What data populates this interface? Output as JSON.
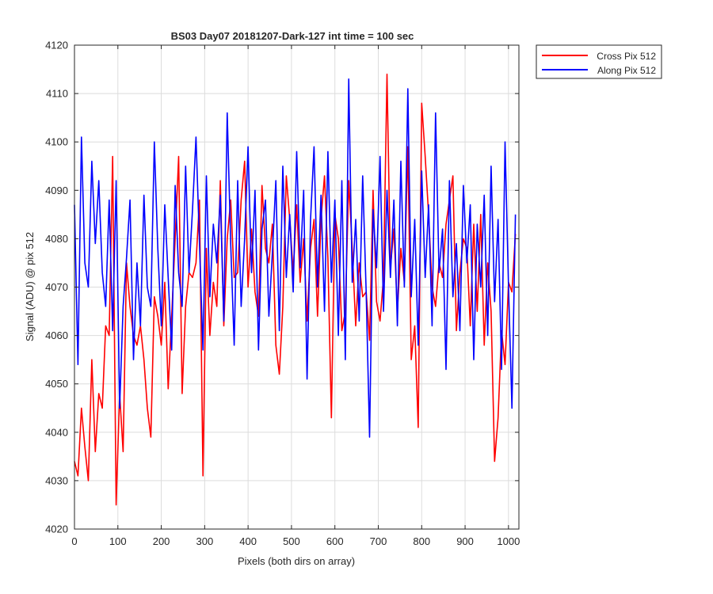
{
  "chart_data": {
    "type": "line",
    "title": "BS03 Day07 20181207-Dark-127 int time = 100 sec",
    "xlabel": "Pixels (both dirs on array)",
    "ylabel": "Signal (ADU) @ pix 512",
    "xlim": [
      0,
      1024
    ],
    "ylim": [
      4020,
      4120
    ],
    "xticks": [
      0,
      100,
      200,
      300,
      400,
      500,
      600,
      700,
      800,
      900,
      1000
    ],
    "yticks": [
      4020,
      4030,
      4040,
      4050,
      4060,
      4070,
      4080,
      4090,
      4100,
      4110,
      4120
    ],
    "grid": true,
    "legend_position": "outside-top-right",
    "series": [
      {
        "name": "Cross Pix 512",
        "color": "#ff0000",
        "x_start": 0,
        "x_step": 8,
        "values": [
          4034,
          4031,
          4045,
          4037,
          4030,
          4055,
          4036,
          4048,
          4045,
          4062,
          4060,
          4097,
          4025,
          4048,
          4036,
          4075,
          4066,
          4060,
          4058,
          4062,
          4055,
          4045,
          4039,
          4068,
          4064,
          4058,
          4071,
          4049,
          4064,
          4080,
          4097,
          4048,
          4066,
          4073,
          4072,
          4075,
          4088,
          4031,
          4078,
          4060,
          4071,
          4066,
          4092,
          4062,
          4080,
          4088,
          4072,
          4073,
          4088,
          4096,
          4070,
          4082,
          4069,
          4064,
          4091,
          4078,
          4075,
          4083,
          4058,
          4052,
          4066,
          4093,
          4084,
          4073,
          4087,
          4071,
          4080,
          4063,
          4078,
          4084,
          4064,
          4084,
          4093,
          4076,
          4043,
          4085,
          4080,
          4061,
          4065,
          4092,
          4078,
          4062,
          4075,
          4068,
          4069,
          4059,
          4090,
          4067,
          4063,
          4072,
          4114,
          4074,
          4082,
          4065,
          4078,
          4071,
          4099,
          4055,
          4062,
          4041,
          4108,
          4097,
          4085,
          4070,
          4066,
          4075,
          4072,
          4083,
          4088,
          4093,
          4061,
          4073,
          4080,
          4078,
          4062,
          4083,
          4065,
          4085,
          4058,
          4075,
          4065,
          4034,
          4043,
          4061,
          4054,
          4071,
          4069,
          4081
        ]
      },
      {
        "name": "Along Pix 512",
        "color": "#0000ff",
        "x_start": 0,
        "x_step": 8,
        "values": [
          4087,
          4054,
          4101,
          4075,
          4070,
          4096,
          4079,
          4092,
          4073,
          4066,
          4088,
          4061,
          4092,
          4045,
          4066,
          4076,
          4088,
          4055,
          4075,
          4062,
          4089,
          4070,
          4066,
          4100,
          4078,
          4062,
          4087,
          4072,
          4057,
          4091,
          4073,
          4066,
          4095,
          4073,
          4086,
          4101,
          4079,
          4057,
          4093,
          4068,
          4083,
          4075,
          4089,
          4063,
          4106,
          4079,
          4058,
          4092,
          4066,
          4080,
          4099,
          4073,
          4090,
          4057,
          4082,
          4088,
          4064,
          4077,
          4092,
          4061,
          4095,
          4072,
          4085,
          4069,
          4098,
          4074,
          4090,
          4051,
          4084,
          4099,
          4070,
          4089,
          4065,
          4098,
          4071,
          4088,
          4060,
          4092,
          4055,
          4113,
          4071,
          4084,
          4063,
          4093,
          4069,
          4039,
          4086,
          4074,
          4097,
          4065,
          4090,
          4072,
          4088,
          4062,
          4096,
          4070,
          4111,
          4068,
          4084,
          4058,
          4094,
          4072,
          4087,
          4062,
          4106,
          4073,
          4082,
          4053,
          4092,
          4068,
          4079,
          4061,
          4091,
          4075,
          4087,
          4055,
          4083,
          4070,
          4089,
          4060,
          4095,
          4067,
          4084,
          4053,
          4100,
          4070,
          4045,
          4085
        ]
      }
    ]
  }
}
